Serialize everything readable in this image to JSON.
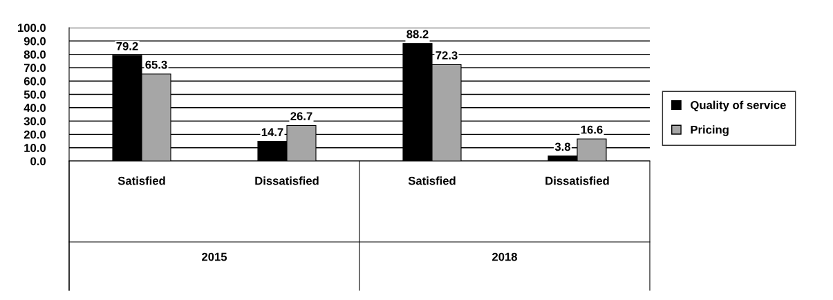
{
  "chart_data": {
    "type": "bar",
    "categories": [
      "Satisfied",
      "Dissatisfied",
      "Satisfied",
      "Dissatisfied"
    ],
    "series": [
      {
        "name": "Quality of service",
        "color": "#000000",
        "values": [
          79.2,
          14.7,
          88.2,
          3.8
        ]
      },
      {
        "name": "Pricing",
        "color": "#a6a6a6",
        "values": [
          65.3,
          26.7,
          72.3,
          16.6
        ]
      }
    ],
    "annotations": [
      "2015",
      "2018"
    ],
    "ylim": [
      0,
      100
    ],
    "yticks": [
      {
        "value": 0,
        "label": "0.0"
      },
      {
        "value": 10,
        "label": "10.0"
      },
      {
        "value": 20,
        "label": "20.0"
      },
      {
        "value": 30,
        "label": "30.0"
      },
      {
        "value": 40,
        "label": "40.0"
      },
      {
        "value": 50,
        "label": "50.0"
      },
      {
        "value": 60,
        "label": "60.0"
      },
      {
        "value": 70,
        "label": "70.0"
      },
      {
        "value": 80,
        "label": "80.0"
      },
      {
        "value": 90,
        "label": "90.0"
      },
      {
        "value": 100,
        "label": "100.0"
      }
    ],
    "grid": "y",
    "legend": "right",
    "data_labels": true
  }
}
